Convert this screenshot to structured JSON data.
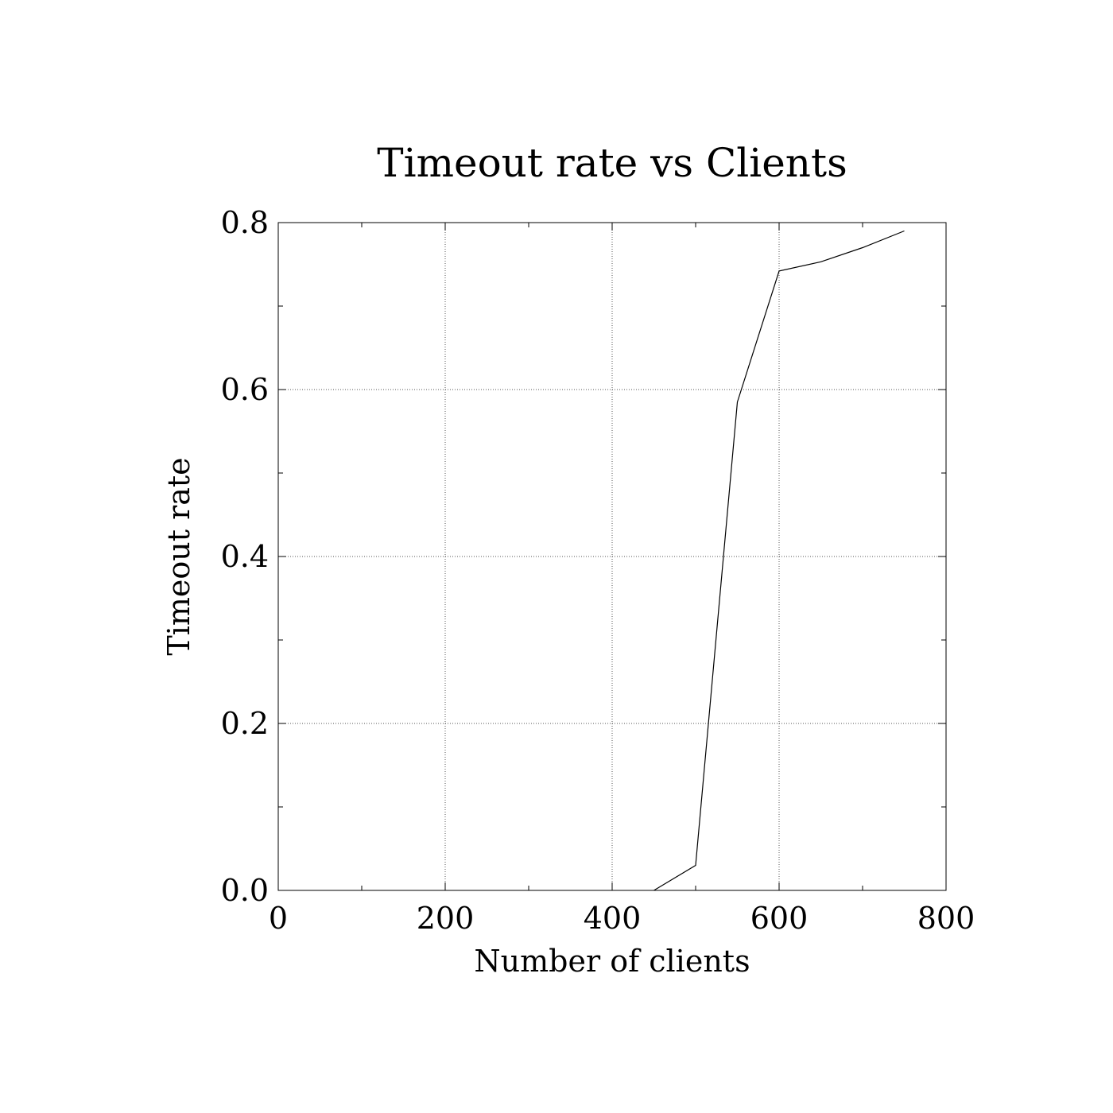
{
  "chart_data": {
    "type": "line",
    "title": "Timeout rate vs Clients",
    "xlabel": "Number of clients",
    "ylabel": "Timeout rate",
    "xlim": [
      0,
      800
    ],
    "ylim": [
      0,
      0.8
    ],
    "xticks": [
      "0",
      "200",
      "400",
      "600",
      "800"
    ],
    "yticks": [
      "0.0",
      "0.2",
      "0.4",
      "0.6",
      "0.8"
    ],
    "xminor_step": 100,
    "yminor_step": 0.1,
    "grid": true,
    "series": [
      {
        "x": [
          450,
          500,
          550,
          600,
          650,
          700,
          750
        ],
        "y": [
          0.0,
          0.03,
          0.585,
          0.742,
          0.753,
          0.77,
          0.79
        ]
      }
    ]
  }
}
